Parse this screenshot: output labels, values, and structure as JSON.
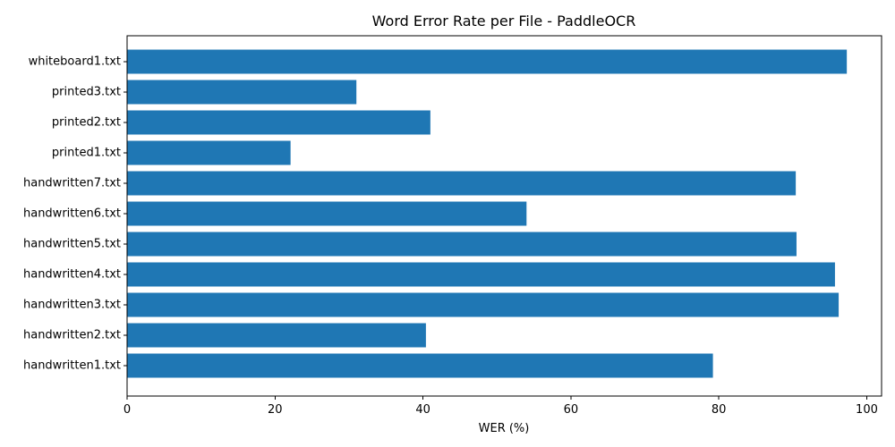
{
  "chart_data": {
    "type": "bar",
    "orientation": "horizontal",
    "title": "Word Error Rate per File - PaddleOCR",
    "xlabel": "WER (%)",
    "ylabel": "",
    "categories": [
      "handwritten1.txt",
      "handwritten2.txt",
      "handwritten3.txt",
      "handwritten4.txt",
      "handwritten5.txt",
      "handwritten6.txt",
      "handwritten7.txt",
      "printed1.txt",
      "printed2.txt",
      "printed3.txt",
      "whiteboard1.txt"
    ],
    "values": [
      79.2,
      40.4,
      96.2,
      95.7,
      90.5,
      54.0,
      90.4,
      22.1,
      41.0,
      31.0,
      97.3
    ],
    "xlim": [
      0,
      102
    ],
    "xticks": [
      0,
      20,
      40,
      60,
      80,
      100
    ],
    "grid": false,
    "bar_color": "#1f77b4"
  }
}
